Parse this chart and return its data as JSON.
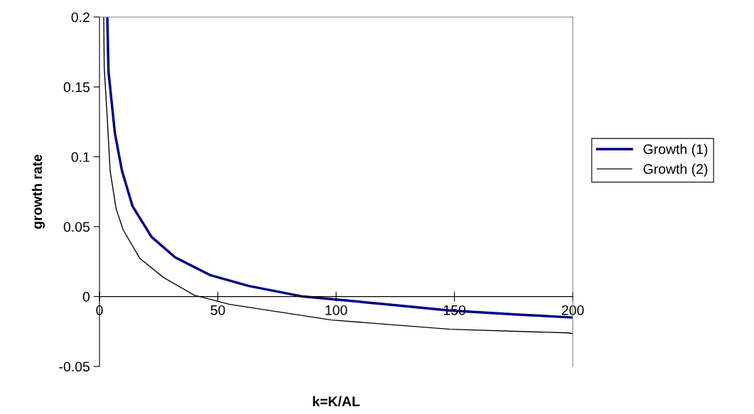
{
  "chart_data": {
    "type": "line",
    "xlabel": "k=K/AL",
    "ylabel": "growth rate",
    "xlim": [
      0,
      200
    ],
    "xticks": [
      0,
      50,
      100,
      150,
      200
    ],
    "ylim": [
      -0.05,
      0.2
    ],
    "yticks": [
      -0.05,
      0,
      0.05,
      0.1,
      0.15,
      0.2
    ],
    "legend": "right",
    "grid": false,
    "marker": "none",
    "line_style": "solid",
    "series": [
      {
        "name": "Growth (1)",
        "color": "#000080",
        "x": [
          3.3,
          3.8,
          6.5,
          9.5,
          14,
          22,
          32,
          47,
          63,
          86,
          118,
          148,
          178,
          200
        ],
        "values": [
          0.2,
          0.161,
          0.117,
          0.09,
          0.0645,
          0.0427,
          0.028,
          0.0152,
          0.0076,
          0,
          -0.005,
          -0.01,
          -0.013,
          -0.015
        ]
      },
      {
        "name": "Growth (2)",
        "color": "#000000",
        "x": [
          1.8,
          2.0,
          3.2,
          4.5,
          7,
          10,
          17,
          27,
          40,
          55,
          98,
          148,
          198,
          200
        ],
        "values": [
          0.2,
          0.164,
          0.13,
          0.09,
          0.063,
          0.0477,
          0.0274,
          0.0137,
          0.001,
          -0.0056,
          -0.0168,
          -0.0234,
          -0.026,
          -0.0265
        ]
      }
    ]
  }
}
